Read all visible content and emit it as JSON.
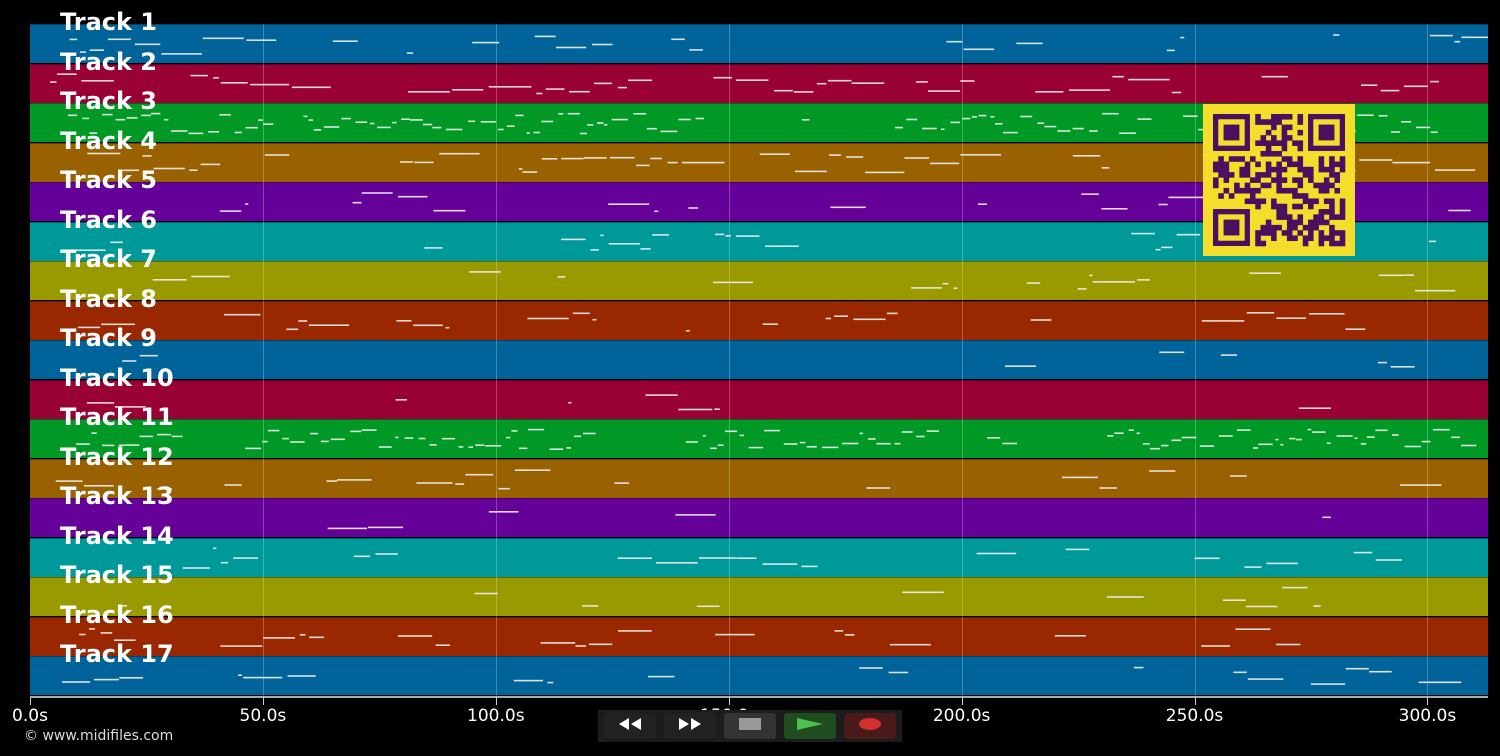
{
  "app": {
    "copyright": "© www.midifiles.com"
  },
  "timeline": {
    "ticks": [
      "0.0s",
      "50.0s",
      "100.0s",
      "150.0s",
      "200.0s",
      "250.0s",
      "300.0s"
    ],
    "tick_values": [
      0,
      50,
      100,
      150,
      200,
      250,
      300
    ],
    "max_seconds": 313
  },
  "colors": {
    "background": "#000000",
    "track_palette": [
      "#00649a",
      "#990033",
      "#009925",
      "#996100",
      "#650099",
      "#009999",
      "#999900",
      "#992800"
    ],
    "note": "#f0f0f0",
    "qr_fg": "#4a1060",
    "qr_bg": "#f5dd2b"
  },
  "tracks": [
    {
      "label": "Track 1"
    },
    {
      "label": "Track 2"
    },
    {
      "label": "Track 3"
    },
    {
      "label": "Track 4"
    },
    {
      "label": "Track 5"
    },
    {
      "label": "Track 6"
    },
    {
      "label": "Track 7"
    },
    {
      "label": "Track 8"
    },
    {
      "label": "Track 9"
    },
    {
      "label": "Track 10"
    },
    {
      "label": "Track 11"
    },
    {
      "label": "Track 12"
    },
    {
      "label": "Track 13"
    },
    {
      "label": "Track 14"
    },
    {
      "label": "Track 15"
    },
    {
      "label": "Track 16"
    },
    {
      "label": "Track 17"
    }
  ],
  "controls": [
    {
      "name": "rewind-button",
      "icon": "rewind-icon",
      "bg": "#222222",
      "active": false
    },
    {
      "name": "fast-forward-button",
      "icon": "fast-forward-icon",
      "bg": "#222222",
      "active": false
    },
    {
      "name": "stop-button",
      "icon": "stop-icon",
      "bg": "#333333",
      "active": false
    },
    {
      "name": "play-button",
      "icon": "play-icon",
      "bg": "#1f4d1f",
      "active": true
    },
    {
      "name": "record-button",
      "icon": "record-icon",
      "bg": "#4a1a1a",
      "active": false
    }
  ]
}
